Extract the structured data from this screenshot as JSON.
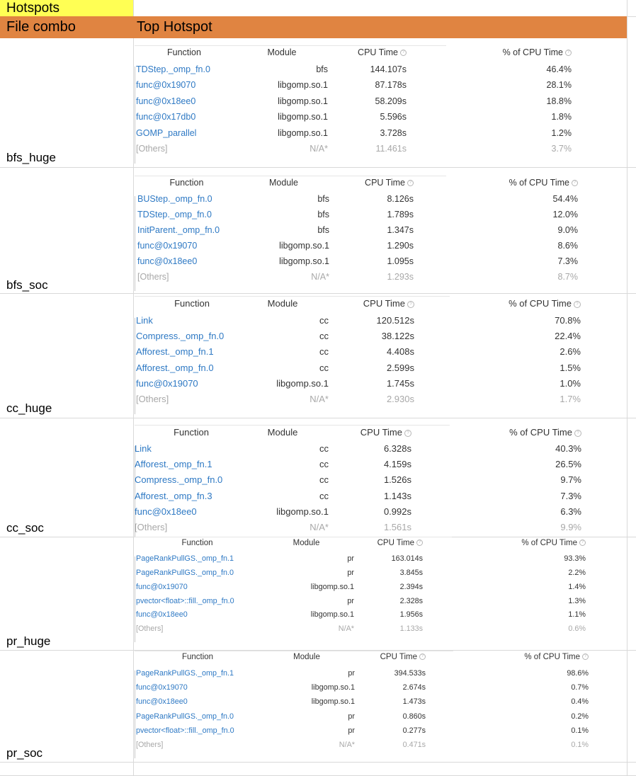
{
  "sheet": {
    "title": "Hotspots",
    "col1_header": "File combo",
    "col2_header": "Top Hotspot"
  },
  "colors": {
    "title_bg": "#ffff54",
    "header_bg": "#e08441",
    "function_link": "#2e79c4",
    "others_text": "#a8a8a8",
    "gridline": "#d9d9d9"
  },
  "rows": [
    {
      "label": "bfs_huge",
      "table": {
        "headers": [
          "Function",
          "Module",
          "CPU Time",
          "% of CPU Time"
        ],
        "rows": [
          [
            "TDStep._omp_fn.0",
            "bfs",
            "144.107s",
            "46.4%"
          ],
          [
            "func@0x19070",
            "libgomp.so.1",
            "87.178s",
            "28.1%"
          ],
          [
            "func@0x18ee0",
            "libgomp.so.1",
            "58.209s",
            "18.8%"
          ],
          [
            "func@0x17db0",
            "libgomp.so.1",
            "5.596s",
            "1.8%"
          ],
          [
            "GOMP_parallel",
            "libgomp.so.1",
            "3.728s",
            "1.2%"
          ],
          [
            "[Others]",
            "N/A*",
            "11.461s",
            "3.7%"
          ]
        ]
      }
    },
    {
      "label": "bfs_soc",
      "table": {
        "headers": [
          "Function",
          "Module",
          "CPU Time",
          "% of CPU Time"
        ],
        "rows": [
          [
            "BUStep._omp_fn.0",
            "bfs",
            "8.126s",
            "54.4%"
          ],
          [
            "TDStep._omp_fn.0",
            "bfs",
            "1.789s",
            "12.0%"
          ],
          [
            "InitParent._omp_fn.0",
            "bfs",
            "1.347s",
            "9.0%"
          ],
          [
            "func@0x19070",
            "libgomp.so.1",
            "1.290s",
            "8.6%"
          ],
          [
            "func@0x18ee0",
            "libgomp.so.1",
            "1.095s",
            "7.3%"
          ],
          [
            "[Others]",
            "N/A*",
            "1.293s",
            "8.7%"
          ]
        ]
      }
    },
    {
      "label": "cc_huge",
      "table": {
        "headers": [
          "Function",
          "Module",
          "CPU Time",
          "% of CPU Time"
        ],
        "rows": [
          [
            "Link",
            "cc",
            "120.512s",
            "70.8%"
          ],
          [
            "Compress._omp_fn.0",
            "cc",
            "38.122s",
            "22.4%"
          ],
          [
            "Afforest._omp_fn.1",
            "cc",
            "4.408s",
            "2.6%"
          ],
          [
            "Afforest._omp_fn.0",
            "cc",
            "2.599s",
            "1.5%"
          ],
          [
            "func@0x19070",
            "libgomp.so.1",
            "1.745s",
            "1.0%"
          ],
          [
            "[Others]",
            "N/A*",
            "2.930s",
            "1.7%"
          ]
        ]
      }
    },
    {
      "label": "cc_soc",
      "table": {
        "headers": [
          "Function",
          "Module",
          "CPU Time",
          "% of CPU Time"
        ],
        "rows": [
          [
            "Link",
            "cc",
            "6.328s",
            "40.3%"
          ],
          [
            "Afforest._omp_fn.1",
            "cc",
            "4.159s",
            "26.5%"
          ],
          [
            "Compress._omp_fn.0",
            "cc",
            "1.526s",
            "9.7%"
          ],
          [
            "Afforest._omp_fn.3",
            "cc",
            "1.143s",
            "7.3%"
          ],
          [
            "func@0x18ee0",
            "libgomp.so.1",
            "0.992s",
            "6.3%"
          ],
          [
            "[Others]",
            "N/A*",
            "1.561s",
            "9.9%"
          ]
        ]
      }
    },
    {
      "label": "pr_huge",
      "table": {
        "headers": [
          "Function",
          "Module",
          "CPU Time",
          "% of CPU Time"
        ],
        "rows": [
          [
            "PageRankPullGS._omp_fn.1",
            "pr",
            "163.014s",
            "93.3%"
          ],
          [
            "PageRankPullGS._omp_fn.0",
            "pr",
            "3.845s",
            "2.2%"
          ],
          [
            "func@0x19070",
            "libgomp.so.1",
            "2.394s",
            "1.4%"
          ],
          [
            "pvector<float>::fill._omp_fn.0",
            "pr",
            "2.328s",
            "1.3%"
          ],
          [
            "func@0x18ee0",
            "libgomp.so.1",
            "1.956s",
            "1.1%"
          ],
          [
            "[Others]",
            "N/A*",
            "1.133s",
            "0.6%"
          ]
        ]
      }
    },
    {
      "label": "pr_soc",
      "table": {
        "headers": [
          "Function",
          "Module",
          "CPU Time",
          "% of CPU Time"
        ],
        "rows": [
          [
            "PageRankPullGS._omp_fn.1",
            "pr",
            "394.533s",
            "98.6%"
          ],
          [
            "func@0x19070",
            "libgomp.so.1",
            "2.674s",
            "0.7%"
          ],
          [
            "func@0x18ee0",
            "libgomp.so.1",
            "1.473s",
            "0.4%"
          ],
          [
            "PageRankPullGS._omp_fn.0",
            "pr",
            "0.860s",
            "0.2%"
          ],
          [
            "pvector<float>::fill._omp_fn.0",
            "pr",
            "0.277s",
            "0.1%"
          ],
          [
            "[Others]",
            "N/A*",
            "0.471s",
            "0.1%"
          ]
        ]
      }
    }
  ]
}
